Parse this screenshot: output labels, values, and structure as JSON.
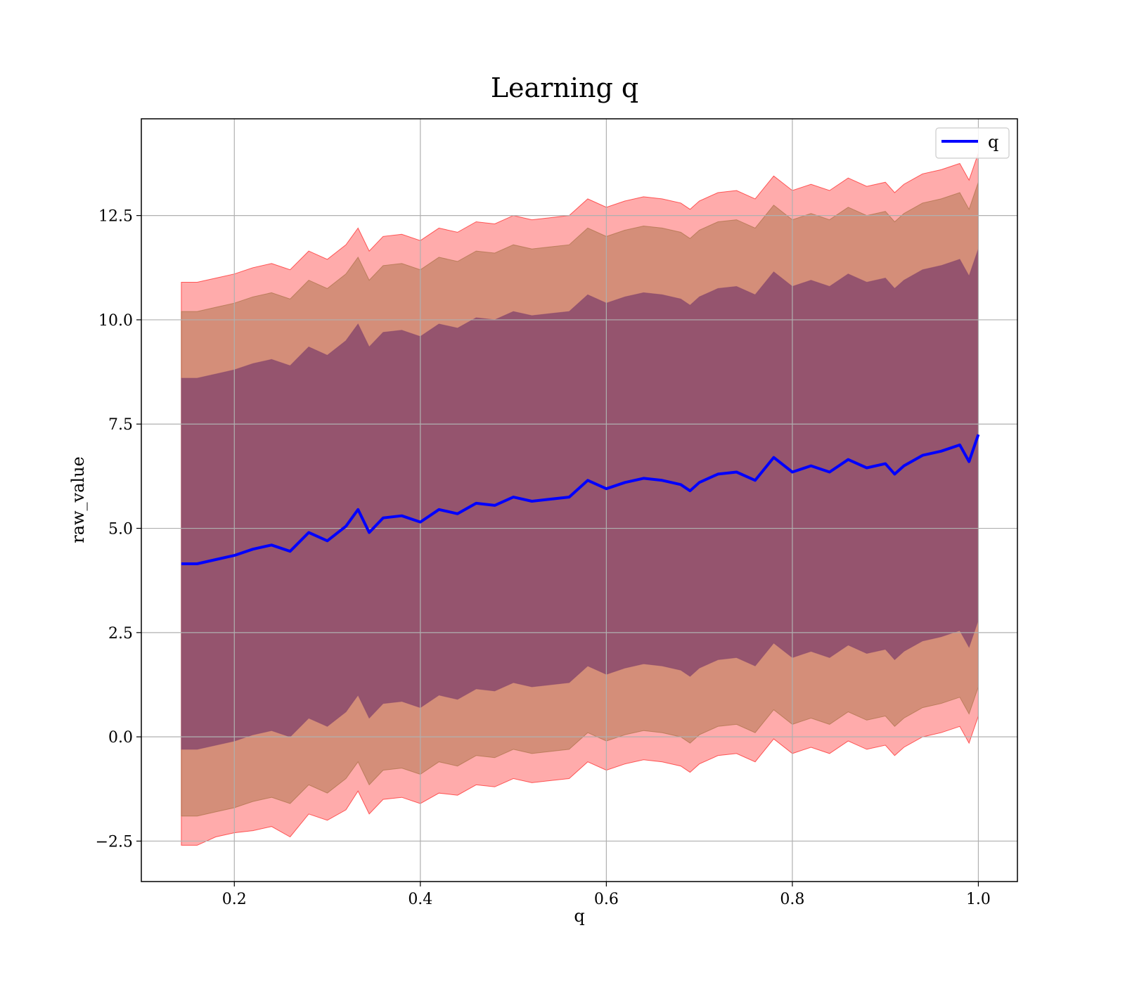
{
  "chart_data": {
    "type": "line",
    "title": "Learning q",
    "xlabel": "q",
    "ylabel": "raw_value",
    "xlim": [
      0.1,
      1.042
    ],
    "ylim": [
      -3.47,
      14.82
    ],
    "grid": true,
    "legend_placement": "top-right",
    "x_ticks": [
      0.2,
      0.4,
      0.6,
      0.8,
      1.0
    ],
    "x_tick_labels": [
      "0.2",
      "0.4",
      "0.6",
      "0.8",
      "1.0"
    ],
    "y_ticks": [
      -2.5,
      0.0,
      2.5,
      5.0,
      7.5,
      10.0,
      12.5
    ],
    "y_tick_labels": [
      "−2.5",
      "0.0",
      "2.5",
      "5.0",
      "7.5",
      "10.0",
      "12.5"
    ],
    "x": [
      0.143,
      0.16,
      0.18,
      0.2,
      0.22,
      0.24,
      0.26,
      0.28,
      0.3,
      0.32,
      0.333,
      0.345,
      0.36,
      0.38,
      0.4,
      0.42,
      0.44,
      0.46,
      0.48,
      0.5,
      0.52,
      0.54,
      0.56,
      0.58,
      0.6,
      0.62,
      0.64,
      0.66,
      0.68,
      0.69,
      0.7,
      0.72,
      0.74,
      0.76,
      0.78,
      0.8,
      0.82,
      0.84,
      0.86,
      0.88,
      0.9,
      0.91,
      0.92,
      0.94,
      0.96,
      0.98,
      0.99,
      1.0
    ],
    "series": [
      {
        "name": "q",
        "color": "#0000ff",
        "values": [
          4.15,
          4.15,
          4.25,
          4.35,
          4.5,
          4.6,
          4.45,
          4.9,
          4.7,
          5.05,
          5.45,
          4.9,
          5.25,
          5.3,
          5.15,
          5.45,
          5.35,
          5.6,
          5.55,
          5.75,
          5.65,
          5.7,
          5.75,
          6.15,
          5.95,
          6.1,
          6.2,
          6.15,
          6.05,
          5.9,
          6.1,
          6.3,
          6.35,
          6.15,
          6.7,
          6.35,
          6.5,
          6.35,
          6.65,
          6.45,
          6.55,
          6.3,
          6.5,
          6.75,
          6.85,
          7.0,
          6.6,
          7.25
        ]
      }
    ],
    "bands": [
      {
        "color": "#ff0000",
        "opacity": 0.33,
        "lower_offsets": [
          -6.75,
          -6.75,
          -6.65,
          -6.65,
          -6.75,
          -6.75,
          -6.85,
          -6.75,
          -6.7,
          -6.8,
          -6.75,
          -6.75,
          -6.75,
          -6.75,
          -6.75,
          -6.8,
          -6.75,
          -6.75,
          -6.75,
          -6.75,
          -6.75,
          -6.75,
          -6.75,
          -6.75,
          -6.75,
          -6.75,
          -6.75,
          -6.75,
          -6.75,
          -6.75,
          -6.75,
          -6.75,
          -6.75,
          -6.75,
          -6.75,
          -6.75,
          -6.75,
          -6.75,
          -6.75,
          -6.75,
          -6.75,
          -6.75,
          -6.75,
          -6.75,
          -6.75,
          -6.75,
          -6.75,
          -6.75
        ],
        "upper_offsets": [
          6.75,
          6.75,
          6.75,
          6.75,
          6.75,
          6.75,
          6.75,
          6.75,
          6.75,
          6.75,
          6.75,
          6.75,
          6.75,
          6.75,
          6.75,
          6.75,
          6.75,
          6.75,
          6.75,
          6.75,
          6.75,
          6.75,
          6.75,
          6.75,
          6.75,
          6.75,
          6.75,
          6.75,
          6.75,
          6.75,
          6.75,
          6.75,
          6.75,
          6.75,
          6.75,
          6.75,
          6.75,
          6.75,
          6.75,
          6.75,
          6.75,
          6.75,
          6.75,
          6.75,
          6.75,
          6.75,
          6.75,
          6.75
        ]
      },
      {
        "color": "#a06a3c",
        "opacity": 0.45,
        "lower_offsets": [
          -6.05,
          -6.05,
          -6.05,
          -6.05,
          -6.05,
          -6.05,
          -6.05,
          -6.05,
          -6.05,
          -6.05,
          -6.05,
          -6.05,
          -6.05,
          -6.05,
          -6.05,
          -6.05,
          -6.05,
          -6.05,
          -6.05,
          -6.05,
          -6.05,
          -6.05,
          -6.05,
          -6.05,
          -6.05,
          -6.05,
          -6.05,
          -6.05,
          -6.05,
          -6.05,
          -6.05,
          -6.05,
          -6.05,
          -6.05,
          -6.05,
          -6.05,
          -6.05,
          -6.05,
          -6.05,
          -6.05,
          -6.05,
          -6.05,
          -6.05,
          -6.05,
          -6.05,
          -6.05,
          -6.05,
          -6.05
        ],
        "upper_offsets": [
          6.05,
          6.05,
          6.05,
          6.05,
          6.05,
          6.05,
          6.05,
          6.05,
          6.05,
          6.05,
          6.05,
          6.05,
          6.05,
          6.05,
          6.05,
          6.05,
          6.05,
          6.05,
          6.05,
          6.05,
          6.05,
          6.05,
          6.05,
          6.05,
          6.05,
          6.05,
          6.05,
          6.05,
          6.05,
          6.05,
          6.05,
          6.05,
          6.05,
          6.05,
          6.05,
          6.05,
          6.05,
          6.05,
          6.05,
          6.05,
          6.05,
          6.05,
          6.05,
          6.05,
          6.05,
          6.05,
          6.05,
          6.05
        ]
      },
      {
        "color": "#8a4a6c",
        "opacity": 0.85,
        "lower_offsets": [
          -4.45,
          -4.45,
          -4.45,
          -4.45,
          -4.45,
          -4.45,
          -4.45,
          -4.45,
          -4.45,
          -4.45,
          -4.45,
          -4.45,
          -4.45,
          -4.45,
          -4.45,
          -4.45,
          -4.45,
          -4.45,
          -4.45,
          -4.45,
          -4.45,
          -4.45,
          -4.45,
          -4.45,
          -4.45,
          -4.45,
          -4.45,
          -4.45,
          -4.45,
          -4.45,
          -4.45,
          -4.45,
          -4.45,
          -4.45,
          -4.45,
          -4.45,
          -4.45,
          -4.45,
          -4.45,
          -4.45,
          -4.45,
          -4.45,
          -4.45,
          -4.45,
          -4.45,
          -4.45,
          -4.45,
          -4.45
        ],
        "upper_offsets": [
          4.45,
          4.45,
          4.45,
          4.45,
          4.45,
          4.45,
          4.45,
          4.45,
          4.45,
          4.45,
          4.45,
          4.45,
          4.45,
          4.45,
          4.45,
          4.45,
          4.45,
          4.45,
          4.45,
          4.45,
          4.45,
          4.45,
          4.45,
          4.45,
          4.45,
          4.45,
          4.45,
          4.45,
          4.45,
          4.45,
          4.45,
          4.45,
          4.45,
          4.45,
          4.45,
          4.45,
          4.45,
          4.45,
          4.45,
          4.45,
          4.45,
          4.45,
          4.45,
          4.45,
          4.45,
          4.45,
          4.45,
          4.45
        ]
      }
    ]
  }
}
